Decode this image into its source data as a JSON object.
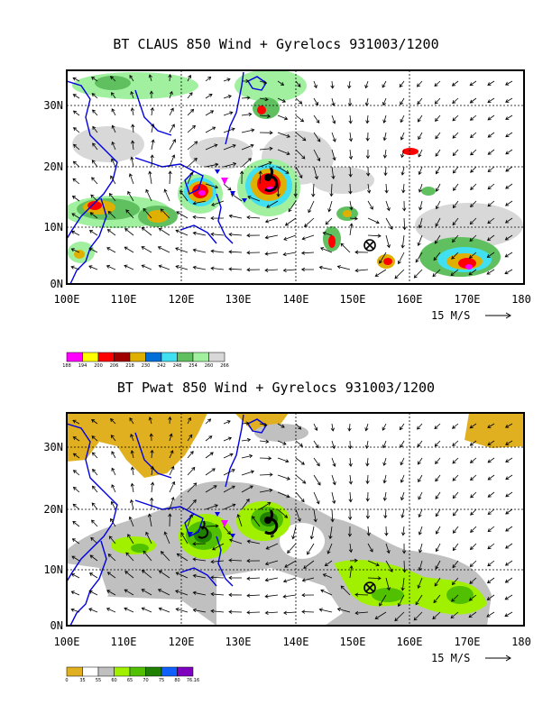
{
  "panels": [
    {
      "title": "BT CLAUS 850 Wind + Gyrelocs 931003/1200",
      "lat_ticks": [
        "0N",
        "10N",
        "20N",
        "30N"
      ],
      "lon_ticks": [
        "100E",
        "110E",
        "120E",
        "130E",
        "140E",
        "150E",
        "160E",
        "170E",
        "180"
      ],
      "vector_ref": "15 M/S",
      "legend": {
        "labels": [
          "188",
          "194",
          "200",
          "206",
          "218",
          "230",
          "242",
          "248",
          "254",
          "260",
          "266"
        ],
        "colors": [
          "#ff00ff",
          "#ffff00",
          "#ff0000",
          "#a00000",
          "#e0b000",
          "#0070d8",
          "#40e0f0",
          "#60c060",
          "#a0f0a0",
          "#d8d8d8"
        ]
      }
    },
    {
      "title": "BT Pwat 850 Wind + Gyrelocs 931003/1200",
      "lat_ticks": [
        "0N",
        "10N",
        "20N",
        "30N"
      ],
      "lon_ticks": [
        "100E",
        "110E",
        "120E",
        "130E",
        "140E",
        "150E",
        "160E",
        "170E",
        "180"
      ],
      "vector_ref": "15 M/S",
      "legend": {
        "labels": [
          "0",
          "35",
          "55",
          "60",
          "65",
          "70",
          "75",
          "80",
          "76.16"
        ],
        "colors": [
          "#e0b020",
          "#ffffff",
          "#c0c0c0",
          "#a0f000",
          "#50c000",
          "#208000",
          "#1060ff",
          "#8000c0"
        ]
      }
    }
  ]
}
